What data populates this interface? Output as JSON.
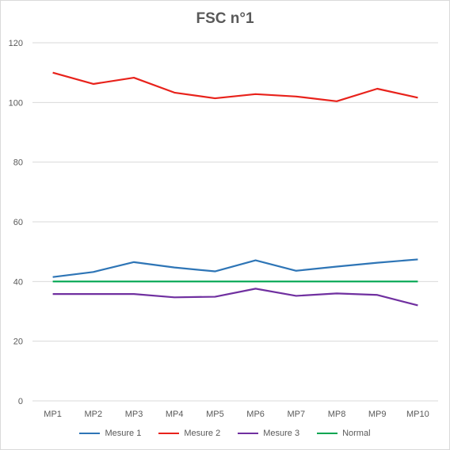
{
  "chart_data": {
    "type": "line",
    "title": "FSC n°1",
    "categories": [
      "MP1",
      "MP2",
      "MP3",
      "MP4",
      "MP5",
      "MP6",
      "MP7",
      "MP8",
      "MP9",
      "MP10"
    ],
    "ylim": [
      0,
      120
    ],
    "yticks": [
      0,
      20,
      40,
      60,
      80,
      100,
      120
    ],
    "grid": true,
    "legend_position": "bottom",
    "series": [
      {
        "name": "Mesure 1",
        "color": "#2e75b6",
        "values": [
          41.5,
          43.2,
          46.5,
          44.7,
          43.4,
          47.1,
          43.6,
          45.0,
          46.3,
          47.4
        ]
      },
      {
        "name": "Mesure 2",
        "color": "#e8221b",
        "values": [
          110.0,
          106.2,
          108.3,
          103.3,
          101.4,
          102.8,
          102.0,
          100.4,
          104.6,
          101.6
        ]
      },
      {
        "name": "Mesure 3",
        "color": "#7030a0",
        "values": [
          35.8,
          35.8,
          35.8,
          34.7,
          34.9,
          37.6,
          35.2,
          36.0,
          35.5,
          32.0
        ]
      },
      {
        "name": "Normal",
        "color": "#00a651",
        "values": [
          40,
          40,
          40,
          40,
          40,
          40,
          40,
          40,
          40,
          40
        ]
      }
    ]
  }
}
